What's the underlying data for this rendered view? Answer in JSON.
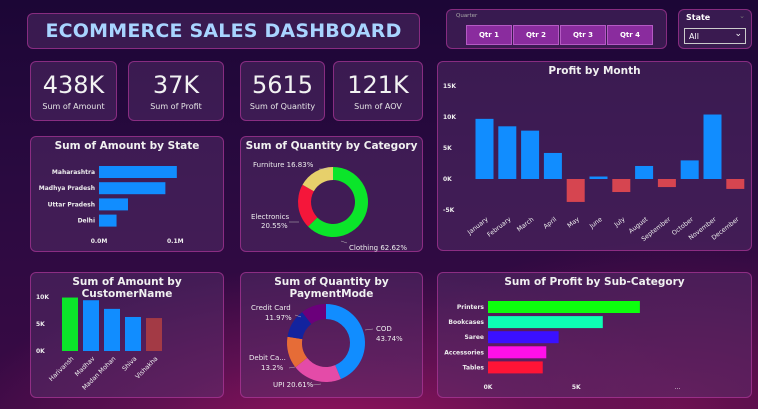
{
  "header": {
    "title": "ECOMMERCE SALES DASHBOARD"
  },
  "quarter_slicer": {
    "label": "Quarter",
    "options": [
      "Qtr 1",
      "Qtr 2",
      "Qtr 3",
      "Qtr 4"
    ]
  },
  "state_slicer": {
    "label": "State",
    "selected": "All"
  },
  "kpis": [
    {
      "value": "438K",
      "label": "Sum of Amount"
    },
    {
      "value": "37K",
      "label": "Sum of Profit"
    },
    {
      "value": "5615",
      "label": "Sum of Quantity"
    },
    {
      "value": "121K",
      "label": "Sum of AOV"
    }
  ],
  "colors": {
    "blue": "#118dff",
    "negative": "#d64550",
    "accent": "#8a2c9e"
  },
  "chart_data": [
    {
      "type": "bar",
      "title": "Profit by Month",
      "categories": [
        "January",
        "February",
        "March",
        "April",
        "May",
        "June",
        "July",
        "August",
        "September",
        "October",
        "November",
        "December"
      ],
      "values": [
        9700,
        8500,
        7800,
        4200,
        -3700,
        400,
        -2100,
        2100,
        -1300,
        3000,
        10400,
        -1600
      ],
      "ylim": [
        -5000,
        15000
      ],
      "yticks": [
        -5000,
        0,
        5000,
        10000,
        15000
      ],
      "ytick_labels": [
        "-5K",
        "0K",
        "5K",
        "10K",
        "15K"
      ]
    },
    {
      "type": "bar",
      "orientation": "horizontal",
      "title": "Sum of Amount by State",
      "categories": [
        "Maharashtra",
        "Madhya Pradesh",
        "Uttar Pradesh",
        "Delhi"
      ],
      "values": [
        102000,
        87000,
        38000,
        23000
      ],
      "xticks": [
        0,
        100000
      ],
      "xtick_labels": [
        "0.0M",
        "0.1M"
      ]
    },
    {
      "type": "pie",
      "donut": true,
      "title": "Sum of Quantity by Category",
      "slices": [
        {
          "name": "Clothing",
          "percent": 62.62,
          "label": "Clothing 62.62%",
          "color": "#0be52a"
        },
        {
          "name": "Electronics",
          "percent": 20.55,
          "label1": "Electronics",
          "label2": "20.55%",
          "color": "#f5163a"
        },
        {
          "name": "Furniture",
          "percent": 16.83,
          "label": "Furniture 16.83%",
          "color": "#e7d06b"
        }
      ]
    },
    {
      "type": "bar",
      "title": "Sum of Amount by CustomerName",
      "categories": [
        "Harivansh",
        "Madhav",
        "Madan Mohan",
        "Shiva",
        "Vishakha"
      ],
      "values": [
        9900,
        9400,
        7800,
        6300,
        6100
      ],
      "colors": [
        "#0be52a",
        "#118dff",
        "#118dff",
        "#118dff",
        "#a33a45"
      ],
      "ylim": [
        0,
        10000
      ],
      "yticks": [
        0,
        5000,
        10000
      ],
      "ytick_labels": [
        "0K",
        "5K",
        "10K"
      ]
    },
    {
      "type": "pie",
      "donut": true,
      "title": "Sum of Quantity by PaymentMode",
      "slices": [
        {
          "name": "COD",
          "percent": 43.74,
          "label1": "COD",
          "label2": "43.74%",
          "color": "#118dff"
        },
        {
          "name": "UPI",
          "percent": 20.61,
          "label1": "UPI 20.61%",
          "color": "#e44ba8"
        },
        {
          "name": "Debit Card",
          "percent": 13.2,
          "label1": "Debit Ca...",
          "label2": "13.2%",
          "color": "#e66c37"
        },
        {
          "name": "Credit Card",
          "percent": 11.97,
          "label1": "Credit Card",
          "label2": "11.97%",
          "color": "#12239e"
        },
        {
          "percent": 10.48,
          "color": "#6b007b"
        }
      ]
    },
    {
      "type": "bar",
      "orientation": "horizontal",
      "title": "Sum of Profit by Sub-Category",
      "categories": [
        "Printers",
        "Bookcases",
        "Saree",
        "Accessories",
        "Tables"
      ],
      "values": [
        8600,
        6500,
        4000,
        3300,
        3100
      ],
      "colors": [
        "#0dff0d",
        "#0dffb4",
        "#3a10ff",
        "#ff10e8",
        "#ff1436"
      ],
      "xticks": [
        0,
        5000
      ],
      "xtick_labels": [
        "0K",
        "5K"
      ],
      "more": "..."
    }
  ]
}
